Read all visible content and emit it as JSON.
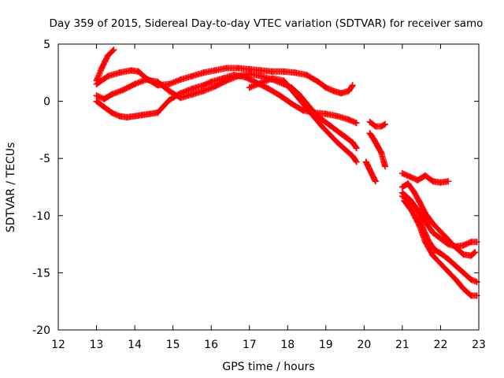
{
  "chart_data": {
    "type": "scatter",
    "title": "Day 359 of 2015, Sidereal Day-to-day VTEC variation (SDTVAR) for receiver samo",
    "xlabel": "GPS time / hours",
    "ylabel": "SDTVAR / TECUs",
    "xlim": [
      12,
      23
    ],
    "ylim": [
      -20,
      5
    ],
    "x_ticks": [
      12,
      13,
      14,
      15,
      16,
      17,
      18,
      19,
      20,
      21,
      22,
      23
    ],
    "y_ticks": [
      5,
      0,
      -5,
      -10,
      -15,
      -20
    ],
    "grid": false,
    "marker": "plus",
    "color": "#ff0000",
    "series": [
      {
        "name": "track-1",
        "x": [
          13.0,
          13.15,
          13.3,
          13.45
        ],
        "y": [
          1.8,
          3.0,
          4.0,
          4.5
        ]
      },
      {
        "name": "track-2",
        "x": [
          13.0,
          13.3,
          13.6,
          13.9,
          14.1,
          14.3,
          14.6,
          14.9,
          15.2,
          15.5,
          15.8,
          16.1,
          16.4,
          16.7,
          17.0,
          17.3,
          17.6,
          17.9,
          18.2,
          18.5,
          18.8,
          19.0,
          19.2,
          19.4,
          19.6,
          19.7
        ],
        "y": [
          1.5,
          2.2,
          2.5,
          2.7,
          2.6,
          2.0,
          1.4,
          1.5,
          1.9,
          2.2,
          2.5,
          2.7,
          2.9,
          2.9,
          2.8,
          2.7,
          2.6,
          2.6,
          2.5,
          2.3,
          1.7,
          1.2,
          0.9,
          0.7,
          0.9,
          1.4
        ]
      },
      {
        "name": "track-3",
        "x": [
          13.0,
          13.2,
          13.4,
          13.6,
          13.8,
          14.0,
          14.2,
          14.4,
          14.6,
          14.9,
          15.2,
          15.5,
          15.8,
          16.0,
          16.3,
          16.6,
          16.9,
          17.2,
          17.5,
          17.8,
          18.1,
          18.4,
          18.7,
          19.0,
          19.3,
          19.6,
          19.8
        ],
        "y": [
          0.0,
          -0.5,
          -1.0,
          -1.3,
          -1.4,
          -1.3,
          -1.2,
          -1.1,
          -1.0,
          0.1,
          0.7,
          1.1,
          1.4,
          1.7,
          2.0,
          2.3,
          2.1,
          1.6,
          1.1,
          0.5,
          -0.2,
          -0.8,
          -1.0,
          -1.1,
          -1.3,
          -1.6,
          -1.9
        ]
      },
      {
        "name": "track-4",
        "x": [
          13.0,
          13.2,
          13.4,
          13.7,
          14.0,
          14.3,
          14.6,
          14.9,
          15.2,
          15.5,
          15.8,
          16.1,
          16.4,
          16.7,
          17.0,
          17.3,
          17.6,
          17.9,
          18.1,
          18.3,
          18.5,
          18.7,
          18.9,
          19.1,
          19.3,
          19.5,
          19.7,
          19.8
        ],
        "y": [
          0.5,
          0.2,
          0.6,
          1.0,
          1.5,
          1.9,
          1.7,
          0.9,
          0.3,
          0.6,
          0.9,
          1.3,
          1.8,
          2.2,
          2.4,
          2.2,
          1.9,
          1.5,
          1.2,
          0.6,
          -0.2,
          -1.0,
          -1.6,
          -2.1,
          -2.6,
          -3.1,
          -3.6,
          -4.1
        ]
      },
      {
        "name": "track-5",
        "x": [
          17.0,
          17.3,
          17.6,
          17.9,
          18.1,
          18.3,
          18.5,
          18.7,
          18.9,
          19.1,
          19.3,
          19.5,
          19.7,
          19.8
        ],
        "y": [
          1.2,
          1.6,
          2.0,
          1.8,
          1.0,
          0.2,
          -0.6,
          -1.4,
          -2.2,
          -2.9,
          -3.6,
          -4.2,
          -4.8,
          -5.3
        ]
      },
      {
        "name": "track-6",
        "x": [
          20.15,
          20.3,
          20.45,
          20.55
        ],
        "y": [
          -1.8,
          -2.2,
          -2.2,
          -2.0
        ]
      },
      {
        "name": "track-7",
        "x": [
          20.15,
          20.25,
          20.35,
          20.45,
          20.55
        ],
        "y": [
          -2.8,
          -3.3,
          -3.9,
          -4.5,
          -5.7
        ]
      },
      {
        "name": "track-8",
        "x": [
          20.05,
          20.15,
          20.25,
          20.3
        ],
        "y": [
          -5.3,
          -6.0,
          -6.7,
          -7.0
        ]
      },
      {
        "name": "track-9",
        "x": [
          21.0,
          21.2,
          21.4,
          21.6,
          21.8,
          22.0,
          22.2
        ],
        "y": [
          -6.3,
          -6.6,
          -6.9,
          -6.5,
          -7.0,
          -7.1,
          -7.0
        ]
      },
      {
        "name": "track-10",
        "x": [
          21.0,
          21.15,
          21.3,
          21.45,
          21.6,
          21.8,
          22.0,
          22.2,
          22.4,
          22.6,
          22.8,
          22.9
        ],
        "y": [
          -7.5,
          -7.2,
          -7.9,
          -8.8,
          -9.8,
          -10.7,
          -11.4,
          -12.1,
          -12.8,
          -13.4,
          -13.5,
          -13.2
        ]
      },
      {
        "name": "track-11",
        "x": [
          21.0,
          21.2,
          21.4,
          21.6,
          21.8,
          22.0,
          22.2,
          22.4,
          22.6,
          22.8,
          22.95
        ],
        "y": [
          -8.0,
          -8.6,
          -9.5,
          -10.5,
          -11.5,
          -12.0,
          -12.5,
          -12.7,
          -12.6,
          -12.3,
          -12.3
        ]
      },
      {
        "name": "track-12",
        "x": [
          21.0,
          21.2,
          21.4,
          21.55,
          21.7,
          21.85,
          22.0,
          22.2,
          22.4,
          22.6,
          22.8,
          22.95
        ],
        "y": [
          -8.3,
          -8.7,
          -9.5,
          -11.2,
          -12.3,
          -13.0,
          -13.3,
          -13.8,
          -14.4,
          -15.0,
          -15.6,
          -15.8
        ]
      },
      {
        "name": "track-13",
        "x": [
          21.05,
          21.25,
          21.45,
          21.6,
          21.8,
          22.0,
          22.2,
          22.4,
          22.6,
          22.8,
          22.95
        ],
        "y": [
          -8.7,
          -9.6,
          -10.9,
          -12.3,
          -13.5,
          -14.2,
          -14.9,
          -15.6,
          -16.4,
          -17.0,
          -17.0
        ]
      }
    ]
  }
}
